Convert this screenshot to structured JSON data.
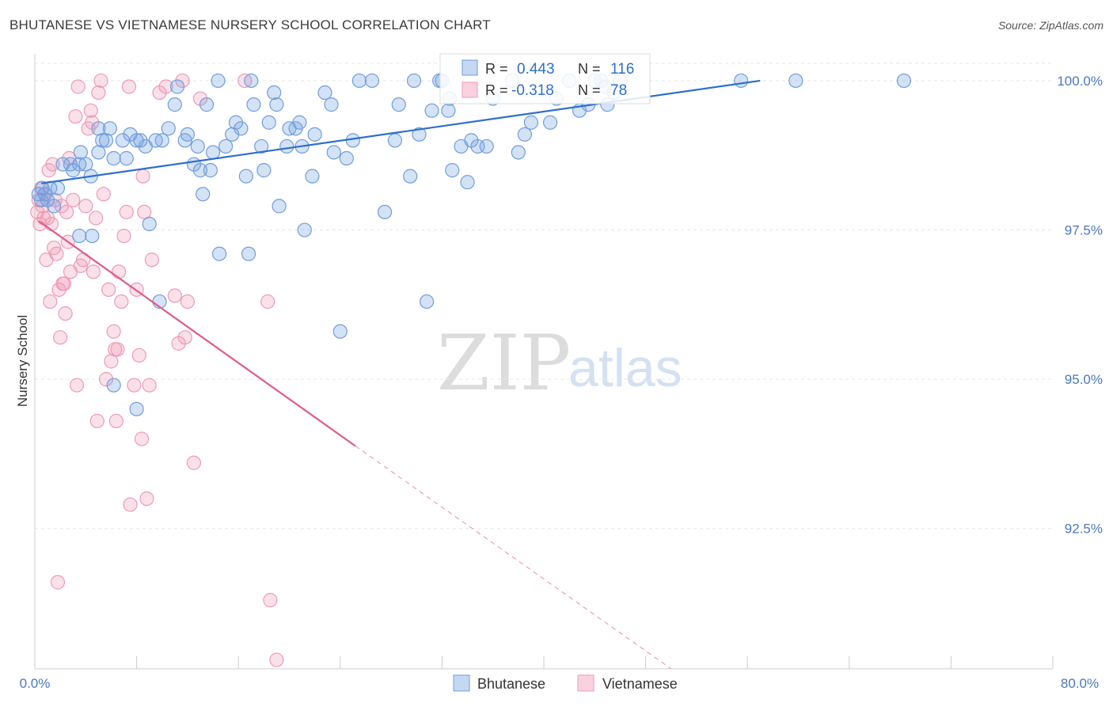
{
  "title": "BHUTANESE VS VIETNAMESE NURSERY SCHOOL CORRELATION CHART",
  "source": "Source: ZipAtlas.com",
  "legend": {
    "row1": {
      "r_label": "R =",
      "r_value": "0.443",
      "n_label": "N =",
      "n_value": "116"
    },
    "row2": {
      "r_label": "R =",
      "r_value": "-0.318",
      "n_label": "N =",
      "n_value": "78"
    }
  },
  "bottom_legend": {
    "series1": "Bhutanese",
    "series2": "Vietnamese"
  },
  "watermark": {
    "zip": "ZIP",
    "atlas": "atlas"
  },
  "colors": {
    "bhutanese": "#6f9ede",
    "vietnamese": "#f09ab5",
    "blue_line": "#2e6fcc",
    "pink_line": "#e05c8a"
  },
  "chart_data": {
    "type": "scatter",
    "title": "BHUTANESE VS VIETNAMESE NURSERY SCHOOL CORRELATION CHART",
    "xlabel": "",
    "ylabel": "Nursery School",
    "xlim": [
      0,
      80
    ],
    "ylim": [
      90.15,
      100.45
    ],
    "x_tick_labels": [
      "0.0%",
      "80.0%"
    ],
    "y_ticks": [
      100.0,
      97.5,
      95.0,
      92.5
    ],
    "y_tick_labels": [
      "100.0%",
      "97.5%",
      "95.0%",
      "92.5%"
    ],
    "grid": true,
    "legend_position": "top-center",
    "series": [
      {
        "name": "Bhutanese",
        "color": "#6f9ede",
        "R": 0.443,
        "N": 116,
        "trend": {
          "x": [
            0.5,
            57
          ],
          "y": [
            98.28,
            100.0
          ]
        },
        "points": [
          [
            0.3,
            98.1
          ],
          [
            0.5,
            98.0
          ],
          [
            0.6,
            98.2
          ],
          [
            0.8,
            98.1
          ],
          [
            1.0,
            98.0
          ],
          [
            1.2,
            98.2
          ],
          [
            1.5,
            97.9
          ],
          [
            1.8,
            98.2
          ],
          [
            2.2,
            98.6
          ],
          [
            2.8,
            98.6
          ],
          [
            3.0,
            98.5
          ],
          [
            3.5,
            98.6
          ],
          [
            3.6,
            98.8
          ],
          [
            4.0,
            98.6
          ],
          [
            4.4,
            98.4
          ],
          [
            4.5,
            97.4
          ],
          [
            5.0,
            99.2
          ],
          [
            5.3,
            99.0
          ],
          [
            5.6,
            99.0
          ],
          [
            5.9,
            99.2
          ],
          [
            6.2,
            98.7
          ],
          [
            6.9,
            99.0
          ],
          [
            7.2,
            98.7
          ],
          [
            7.5,
            99.1
          ],
          [
            8.0,
            99.0
          ],
          [
            8.3,
            99.0
          ],
          [
            8.7,
            98.9
          ],
          [
            9.0,
            97.6
          ],
          [
            9.5,
            99.0
          ],
          [
            10.0,
            99.0
          ],
          [
            10.5,
            99.2
          ],
          [
            11.0,
            99.6
          ],
          [
            11.2,
            99.9
          ],
          [
            12.0,
            99.1
          ],
          [
            12.5,
            98.6
          ],
          [
            12.8,
            98.9
          ],
          [
            13.0,
            98.5
          ],
          [
            13.2,
            98.1
          ],
          [
            13.8,
            98.5
          ],
          [
            13.5,
            99.6
          ],
          [
            14.0,
            98.8
          ],
          [
            14.4,
            100.0
          ],
          [
            14.5,
            97.1
          ],
          [
            15.0,
            98.9
          ],
          [
            15.5,
            99.1
          ],
          [
            15.8,
            99.3
          ],
          [
            16.2,
            99.2
          ],
          [
            16.6,
            98.4
          ],
          [
            16.8,
            97.1
          ],
          [
            17.0,
            100.0
          ],
          [
            17.2,
            99.6
          ],
          [
            17.8,
            98.9
          ],
          [
            18.0,
            98.5
          ],
          [
            18.4,
            99.3
          ],
          [
            18.8,
            99.8
          ],
          [
            19.0,
            99.6
          ],
          [
            19.2,
            97.9
          ],
          [
            19.8,
            98.9
          ],
          [
            20.0,
            99.2
          ],
          [
            20.5,
            99.2
          ],
          [
            20.8,
            99.3
          ],
          [
            21.0,
            98.9
          ],
          [
            21.2,
            97.5
          ],
          [
            21.8,
            98.4
          ],
          [
            22.0,
            99.1
          ],
          [
            22.8,
            99.8
          ],
          [
            23.3,
            99.6
          ],
          [
            23.5,
            98.8
          ],
          [
            24.0,
            95.8
          ],
          [
            24.5,
            98.7
          ],
          [
            25.0,
            99.0
          ],
          [
            25.5,
            100.0
          ],
          [
            26.5,
            100.0
          ],
          [
            27.5,
            97.8
          ],
          [
            28.3,
            99.0
          ],
          [
            28.6,
            99.6
          ],
          [
            29.5,
            98.4
          ],
          [
            29.8,
            100.0
          ],
          [
            30.2,
            99.1
          ],
          [
            30.8,
            96.3
          ],
          [
            31.2,
            99.5
          ],
          [
            31.8,
            100.0
          ],
          [
            32.0,
            100.0
          ],
          [
            32.5,
            99.5
          ],
          [
            32.6,
            99.7
          ],
          [
            32.8,
            98.5
          ],
          [
            33.5,
            98.9
          ],
          [
            34.0,
            98.3
          ],
          [
            34.3,
            99.0
          ],
          [
            34.8,
            98.9
          ],
          [
            35.5,
            98.9
          ],
          [
            36.0,
            99.7
          ],
          [
            37.5,
            100.0
          ],
          [
            38.0,
            98.8
          ],
          [
            38.5,
            99.1
          ],
          [
            39.0,
            99.3
          ],
          [
            40.5,
            99.3
          ],
          [
            41.0,
            99.7
          ],
          [
            42.0,
            100.0
          ],
          [
            42.8,
            99.5
          ],
          [
            43.5,
            99.6
          ],
          [
            44.0,
            100.0
          ],
          [
            44.5,
            100.0
          ],
          [
            45.0,
            99.6
          ],
          [
            44.8,
            99.9
          ],
          [
            45.5,
            99.8
          ],
          [
            46.0,
            100.0
          ],
          [
            55.5,
            100.0
          ],
          [
            59.8,
            100.0
          ],
          [
            68.3,
            100.0
          ],
          [
            3.5,
            97.4
          ],
          [
            6.2,
            94.9
          ],
          [
            8.0,
            94.5
          ],
          [
            9.8,
            96.3
          ],
          [
            5.0,
            98.8
          ],
          [
            11.8,
            99.0
          ]
        ]
      },
      {
        "name": "Vietnamese",
        "color": "#f09ab5",
        "R": -0.318,
        "N": 78,
        "trend": {
          "x": [
            0.3,
            25.2
          ],
          "y": [
            97.65,
            93.88
          ]
        },
        "trend_dashed": {
          "x": [
            25.2,
            50
          ],
          "y": [
            93.88,
            90.15
          ]
        },
        "points": [
          [
            0.2,
            97.8
          ],
          [
            0.3,
            98.0
          ],
          [
            0.4,
            97.6
          ],
          [
            0.5,
            98.2
          ],
          [
            0.6,
            97.9
          ],
          [
            0.7,
            97.7
          ],
          [
            0.8,
            98.1
          ],
          [
            1.0,
            97.7
          ],
          [
            1.2,
            96.3
          ],
          [
            1.3,
            97.6
          ],
          [
            1.4,
            98.6
          ],
          [
            1.5,
            97.2
          ],
          [
            1.7,
            97.1
          ],
          [
            1.9,
            96.5
          ],
          [
            2.0,
            95.7
          ],
          [
            2.1,
            97.9
          ],
          [
            2.2,
            96.6
          ],
          [
            2.3,
            96.6
          ],
          [
            2.4,
            96.1
          ],
          [
            2.5,
            97.8
          ],
          [
            2.7,
            98.7
          ],
          [
            2.8,
            96.8
          ],
          [
            3.0,
            98.0
          ],
          [
            3.2,
            99.4
          ],
          [
            3.4,
            99.9
          ],
          [
            3.6,
            96.9
          ],
          [
            3.8,
            97.0
          ],
          [
            4.0,
            97.9
          ],
          [
            4.2,
            99.2
          ],
          [
            4.4,
            99.5
          ],
          [
            4.5,
            99.3
          ],
          [
            4.6,
            96.8
          ],
          [
            4.8,
            97.7
          ],
          [
            5.0,
            99.8
          ],
          [
            5.2,
            100.0
          ],
          [
            5.4,
            98.1
          ],
          [
            5.6,
            95.0
          ],
          [
            5.8,
            96.5
          ],
          [
            6.0,
            95.3
          ],
          [
            6.2,
            95.8
          ],
          [
            6.3,
            95.5
          ],
          [
            6.4,
            94.3
          ],
          [
            6.6,
            96.8
          ],
          [
            6.8,
            96.3
          ],
          [
            7.0,
            97.4
          ],
          [
            7.2,
            97.8
          ],
          [
            7.4,
            99.9
          ],
          [
            7.5,
            92.9
          ],
          [
            7.8,
            94.9
          ],
          [
            8.0,
            96.5
          ],
          [
            8.2,
            95.4
          ],
          [
            8.4,
            94.0
          ],
          [
            8.5,
            98.4
          ],
          [
            8.6,
            97.8
          ],
          [
            8.8,
            93.0
          ],
          [
            9.0,
            94.9
          ],
          [
            9.2,
            97.0
          ],
          [
            9.8,
            99.8
          ],
          [
            10.3,
            99.9
          ],
          [
            11.0,
            96.4
          ],
          [
            11.3,
            95.6
          ],
          [
            11.6,
            100.0
          ],
          [
            11.8,
            95.7
          ],
          [
            12.0,
            96.3
          ],
          [
            12.5,
            93.6
          ],
          [
            13.0,
            99.7
          ],
          [
            16.5,
            100.0
          ],
          [
            18.3,
            96.3
          ],
          [
            18.5,
            91.3
          ],
          [
            19.0,
            90.3
          ],
          [
            1.8,
            91.6
          ],
          [
            2.6,
            97.3
          ],
          [
            3.3,
            94.9
          ],
          [
            4.9,
            94.3
          ],
          [
            6.5,
            95.5
          ],
          [
            0.9,
            97.0
          ],
          [
            1.1,
            98.5
          ],
          [
            1.6,
            98.0
          ]
        ]
      }
    ]
  }
}
